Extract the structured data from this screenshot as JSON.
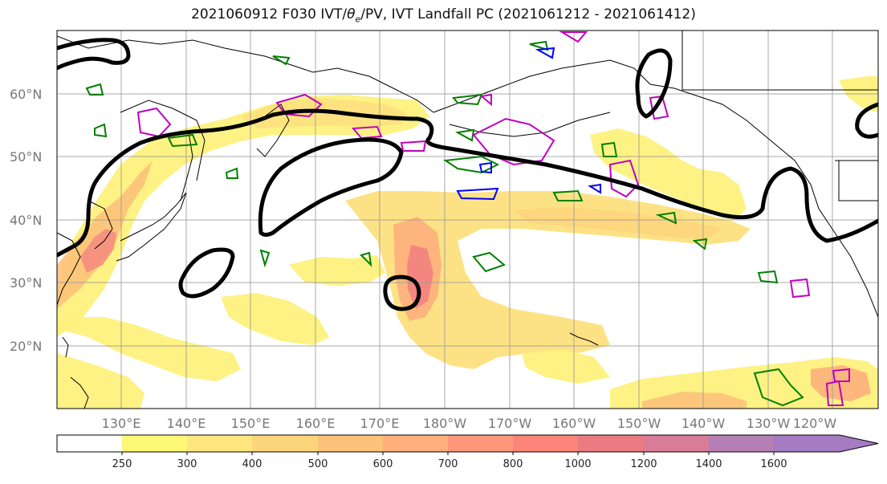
{
  "title": {
    "run": "2021060912",
    "forecast": "F030",
    "fields_prefix": "IVT/",
    "theta_symbol": "θ",
    "theta_sub": "e",
    "fields_suffix": "/PV, IVT Landfall PC",
    "window": "(2021061212 - 2021061412)"
  },
  "map": {
    "lat_labels": [
      {
        "label": "60°N",
        "lat": 60
      },
      {
        "label": "50°N",
        "lat": 50
      },
      {
        "label": "40°N",
        "lat": 40
      },
      {
        "label": "30°N",
        "lat": 30
      },
      {
        "label": "20°N",
        "lat": 20
      }
    ],
    "lon_labels": [
      {
        "label": "130°E",
        "lon": 130
      },
      {
        "label": "140°E",
        "lon": 140
      },
      {
        "label": "150°E",
        "lon": 150
      },
      {
        "label": "160°E",
        "lon": 160
      },
      {
        "label": "170°E",
        "lon": 170
      },
      {
        "label": "180°W",
        "lon": 180
      },
      {
        "label": "170°W",
        "lon": 190
      },
      {
        "label": "160°W",
        "lon": 200
      },
      {
        "label": "150°W",
        "lon": 210
      },
      {
        "label": "140°W",
        "lon": 220
      },
      {
        "label": "130°W",
        "lon": 230
      },
      {
        "label": "120°W",
        "lon": 240
      }
    ],
    "lon_range": [
      120,
      247
    ],
    "lat_range": [
      10,
      70
    ],
    "grid": true,
    "colors": {
      "pc_contour": "#000000",
      "pv_contour": "#c000c0",
      "theta_contour": "#008000",
      "blue_contour": "#0000ff",
      "coastline": "#000000",
      "gridline": "#9a9a9a"
    }
  },
  "colorbar": {
    "ticks": [
      "250",
      "300",
      "400",
      "500",
      "600",
      "700",
      "800",
      "1000",
      "1200",
      "1400",
      "1600"
    ],
    "bins": [
      {
        "color": "#ffffff"
      },
      {
        "color": "#fdf876"
      },
      {
        "color": "#fde77e"
      },
      {
        "color": "#fdd57c"
      },
      {
        "color": "#fdc27a"
      },
      {
        "color": "#fdb07c"
      },
      {
        "color": "#fd977a"
      },
      {
        "color": "#fb8578"
      },
      {
        "color": "#eb7b82"
      },
      {
        "color": "#d97c97"
      },
      {
        "color": "#b57fb6"
      },
      {
        "color": "#a57bc2"
      }
    ]
  }
}
